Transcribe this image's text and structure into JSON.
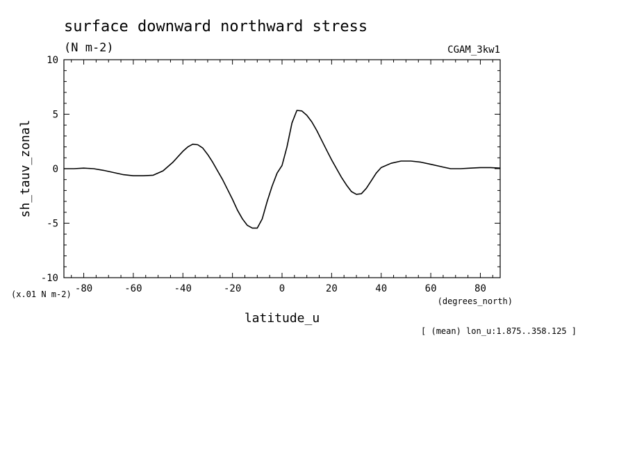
{
  "chart_data": {
    "type": "line",
    "title": "surface downward northward stress",
    "subtitle": "(N m-2)",
    "dataset": "CGAM_3kw1",
    "xlabel": "latitude_u",
    "xunits": "(degrees_north)",
    "ylabel": "sh_tauv_zonal",
    "yunits": "(x.01 N m-2)",
    "footnote": "[ (mean) lon_u:1.875..358.125 ]",
    "xlim": [
      -88,
      88
    ],
    "ylim": [
      -10,
      10
    ],
    "xticks": [
      -80,
      -60,
      -40,
      -20,
      0,
      20,
      40,
      60,
      80
    ],
    "xtick_labels": [
      "-80",
      "-60",
      "-40",
      "-20",
      "0",
      "20",
      "40",
      "60",
      "80"
    ],
    "yticks": [
      -10,
      -5,
      0,
      5,
      10
    ],
    "ytick_labels": [
      "-10",
      "-5",
      "0",
      "5",
      "10"
    ],
    "grid": false,
    "series": [
      {
        "x": [
          -88,
          -84,
          -80,
          -76,
          -72,
          -68,
          -64,
          -60,
          -56,
          -52,
          -48,
          -44,
          -40,
          -38,
          -36,
          -34,
          -32,
          -30,
          -28,
          -26,
          -24,
          -22,
          -20,
          -18,
          -16,
          -14,
          -12,
          -10,
          -8,
          -6,
          -4,
          -2,
          0,
          2,
          4,
          6,
          8,
          10,
          12,
          14,
          16,
          18,
          20,
          22,
          24,
          26,
          28,
          30,
          32,
          34,
          36,
          38,
          40,
          44,
          48,
          52,
          56,
          60,
          64,
          68,
          72,
          76,
          80,
          84,
          88
        ],
        "y": [
          0.0,
          0.0,
          0.05,
          0.0,
          -0.15,
          -0.35,
          -0.55,
          -0.65,
          -0.65,
          -0.6,
          -0.2,
          0.6,
          1.6,
          2.0,
          2.25,
          2.2,
          1.9,
          1.3,
          0.6,
          -0.2,
          -1.0,
          -1.9,
          -2.8,
          -3.8,
          -4.6,
          -5.2,
          -5.45,
          -5.45,
          -4.6,
          -3.0,
          -1.6,
          -0.4,
          0.3,
          2.0,
          4.2,
          5.35,
          5.3,
          4.9,
          4.3,
          3.5,
          2.6,
          1.7,
          0.8,
          0.0,
          -0.8,
          -1.5,
          -2.1,
          -2.35,
          -2.3,
          -1.8,
          -1.1,
          -0.4,
          0.1,
          0.5,
          0.7,
          0.7,
          0.6,
          0.4,
          0.2,
          0.0,
          0.0,
          0.05,
          0.1,
          0.1,
          0.05
        ]
      }
    ]
  }
}
